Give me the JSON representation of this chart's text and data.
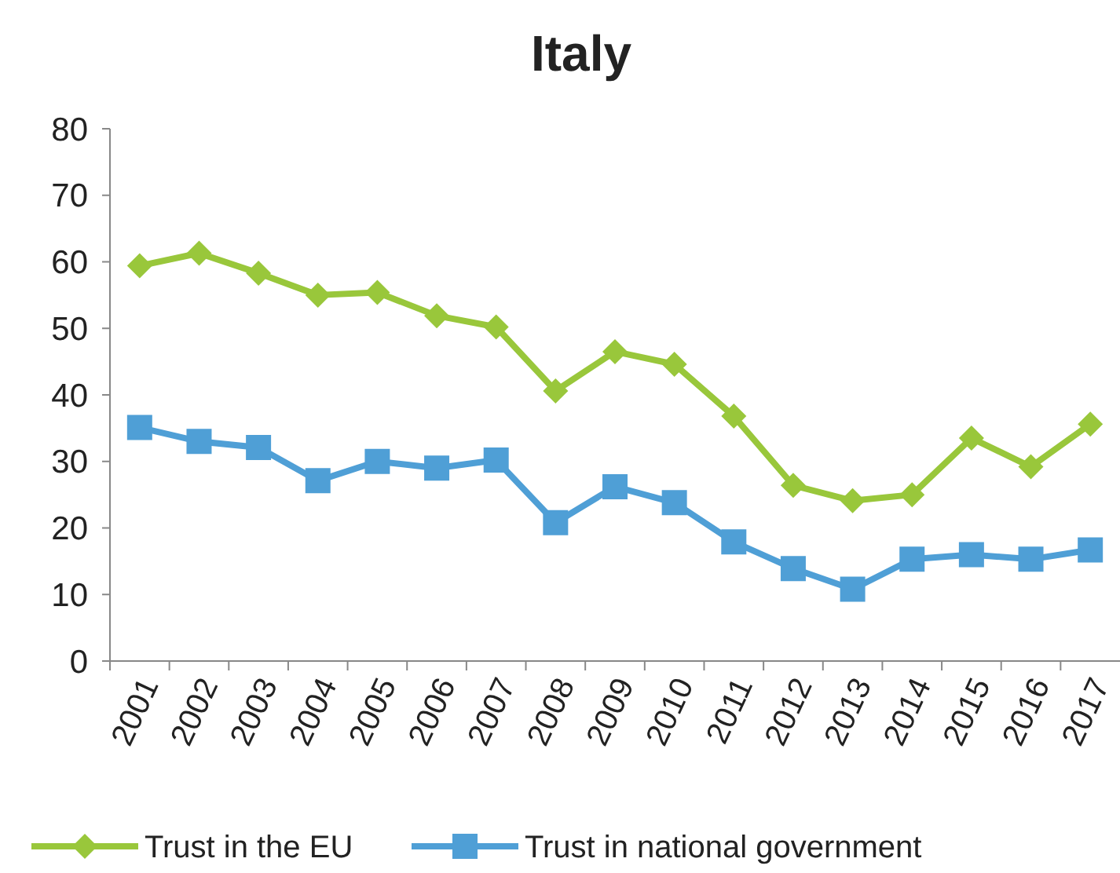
{
  "chart_data": {
    "type": "line",
    "title": "Italy",
    "categories": [
      "2001",
      "2002",
      "2003",
      "2004",
      "2005",
      "2006",
      "2007",
      "2008",
      "2009",
      "2010",
      "2011",
      "2012",
      "2013",
      "2014",
      "2015",
      "2016",
      "2017"
    ],
    "series": [
      {
        "name": "Trust in the EU",
        "color": "#99c73b",
        "marker": "diamond",
        "values": [
          59.4,
          61.3,
          58.3,
          55,
          55.4,
          51.9,
          50.2,
          40.6,
          46.5,
          44.6,
          36.8,
          26.4,
          24.1,
          25,
          33.5,
          29.2,
          35.6
        ]
      },
      {
        "name": "Trust in national government",
        "color": "#4f9fd6",
        "marker": "square",
        "values": [
          35.1,
          33,
          32.1,
          27.1,
          30,
          29,
          30.2,
          20.8,
          26.2,
          23.8,
          17.9,
          13.9,
          10.8,
          15.3,
          16,
          15.3,
          16.7
        ]
      }
    ],
    "ylim": [
      0,
      80
    ],
    "yticks": [
      0,
      10,
      20,
      30,
      40,
      50,
      60,
      70,
      80
    ],
    "grid": false,
    "legend": "bottom",
    "line_style": "solid"
  }
}
